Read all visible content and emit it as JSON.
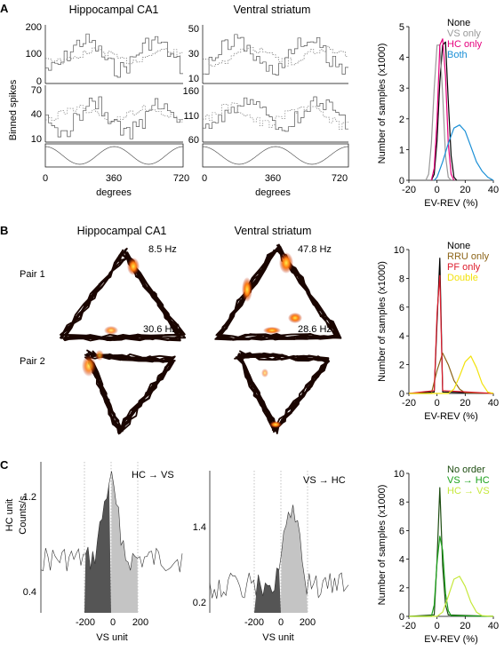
{
  "panels": {
    "A": {
      "letter": "A",
      "left_title": "Hippocampal CA1",
      "mid_title": "Ventral striatum",
      "ylabel": "Binned spikes",
      "xlabel": "degrees",
      "xticks": [
        "0",
        "360",
        "720"
      ],
      "left_top_yticks": [
        "200",
        "100",
        "0"
      ],
      "left_bot_yticks": [
        "70",
        "40",
        "10"
      ],
      "mid_top_yticks": [
        "50",
        "30",
        "10"
      ],
      "mid_bot_yticks": [
        "160",
        "110",
        "60"
      ]
    },
    "B": {
      "letter": "B",
      "left_title": "Hippocampal CA1",
      "mid_title": "Ventral striatum",
      "pair1": "Pair 1",
      "pair2": "Pair 2",
      "rate_hc_1": "8.5 Hz",
      "rate_vs_1": "47.8 Hz",
      "rate_hc_2": "30.6 Hz",
      "rate_vs_2": "28.6 Hz"
    },
    "C": {
      "letter": "C",
      "left_annot": "HC → VS",
      "mid_annot": "VS → HC",
      "left_ylabel_1": "HC unit",
      "left_ylabel_2": "Counts/s",
      "left_yticks": [
        "1.2",
        "0.4"
      ],
      "mid_yticks": [
        "1.4",
        "0.2"
      ],
      "xticks": [
        "-200",
        "0",
        "200"
      ],
      "xlabel": "VS unit"
    }
  },
  "chart_data": [
    {
      "type": "line",
      "panel": "A",
      "xlabel": "EV-REV (%)",
      "ylabel": "Number of samples (x1000)",
      "xlim": [
        -20,
        40
      ],
      "ylim": [
        0,
        5
      ],
      "xticks": [
        -20,
        0,
        20,
        40
      ],
      "yticks": [
        0,
        1,
        2,
        3,
        4,
        5
      ],
      "legend_position": "top-right",
      "series": [
        {
          "name": "None",
          "color": "#000000",
          "x": [
            -4,
            -2,
            0,
            2,
            4,
            6,
            8,
            10,
            12,
            14
          ],
          "y": [
            0,
            0.2,
            1.3,
            3.2,
            4.4,
            4.5,
            2.6,
            0.8,
            0.1,
            0
          ]
        },
        {
          "name": "VS only",
          "color": "#999999",
          "x": [
            -8,
            -6,
            -4,
            -2,
            0,
            2,
            4,
            6,
            8,
            10
          ],
          "y": [
            0,
            0.2,
            1.2,
            3.0,
            4.4,
            4.4,
            2.8,
            0.8,
            0.1,
            0
          ]
        },
        {
          "name": "HC only",
          "color": "#e6007e",
          "x": [
            -4,
            -2,
            0,
            2,
            4,
            6,
            8,
            10,
            12
          ],
          "y": [
            0,
            0.4,
            2.0,
            4.4,
            4.6,
            3.4,
            1.2,
            0.2,
            0
          ]
        },
        {
          "name": "Both",
          "color": "#1a8fd6",
          "x": [
            -2,
            0,
            4,
            8,
            12,
            16,
            20,
            24,
            28,
            32,
            36,
            40
          ],
          "y": [
            0,
            0.1,
            0.6,
            1.2,
            1.7,
            1.8,
            1.6,
            1.1,
            0.6,
            0.3,
            0.1,
            0
          ]
        }
      ]
    },
    {
      "type": "line",
      "panel": "B",
      "xlabel": "EV-REV (%)",
      "ylabel": "Number of samples (x1000)",
      "xlim": [
        -20,
        40
      ],
      "ylim": [
        0,
        10
      ],
      "xticks": [
        -20,
        0,
        20,
        40
      ],
      "yticks": [
        0,
        2,
        4,
        6,
        8,
        10
      ],
      "legend_position": "top-right",
      "series": [
        {
          "name": "None",
          "color": "#000000",
          "x": [
            -20,
            -2,
            0,
            2,
            4,
            40
          ],
          "y": [
            0,
            0.1,
            5.0,
            9.4,
            0.1,
            0
          ]
        },
        {
          "name": "RRU only",
          "color": "#8c6418",
          "x": [
            -20,
            -4,
            0,
            4,
            8,
            12,
            16,
            20,
            40
          ],
          "y": [
            0,
            0,
            1.6,
            2.8,
            2.0,
            0.9,
            0.3,
            0.05,
            0
          ]
        },
        {
          "name": "PF only",
          "color": "#dd1c2c",
          "x": [
            -20,
            -2,
            0,
            2,
            4,
            40
          ],
          "y": [
            0,
            0.2,
            5.6,
            8.2,
            0.2,
            0
          ]
        },
        {
          "name": "Double",
          "color": "#f2e20d",
          "x": [
            -20,
            8,
            12,
            16,
            20,
            24,
            28,
            32,
            36,
            40
          ],
          "y": [
            0,
            0,
            0.3,
            1.2,
            2.2,
            2.6,
            1.8,
            0.7,
            0.1,
            0
          ]
        }
      ]
    },
    {
      "type": "line",
      "panel": "C",
      "xlabel": "EV-REV (%)",
      "ylabel": "Number of samples (x1000)",
      "xlim": [
        -20,
        40
      ],
      "ylim": [
        0,
        10
      ],
      "xticks": [
        -20,
        0,
        20,
        40
      ],
      "yticks": [
        0,
        2,
        4,
        6,
        8,
        10
      ],
      "legend_position": "top-right",
      "series": [
        {
          "name": "No order",
          "color": "#1e4d12",
          "x": [
            -20,
            -2,
            0,
            2,
            4,
            6,
            8,
            40
          ],
          "y": [
            0,
            0.1,
            4.0,
            9.0,
            3.5,
            0.8,
            0.1,
            0
          ]
        },
        {
          "name": "VS → HC",
          "color": "#1aa11a",
          "x": [
            -20,
            -4,
            -2,
            0,
            2,
            4,
            6,
            8,
            10,
            40
          ],
          "y": [
            0,
            0,
            0.8,
            3.8,
            5.6,
            4.6,
            1.6,
            0.4,
            0.05,
            0
          ]
        },
        {
          "name": "HC → VS",
          "color": "#c6e83c",
          "x": [
            -20,
            0,
            4,
            8,
            12,
            16,
            20,
            24,
            28,
            32,
            40
          ],
          "y": [
            0,
            0,
            0.3,
            1.4,
            2.6,
            2.8,
            2.1,
            1.0,
            0.3,
            0.05,
            0
          ]
        }
      ]
    }
  ]
}
